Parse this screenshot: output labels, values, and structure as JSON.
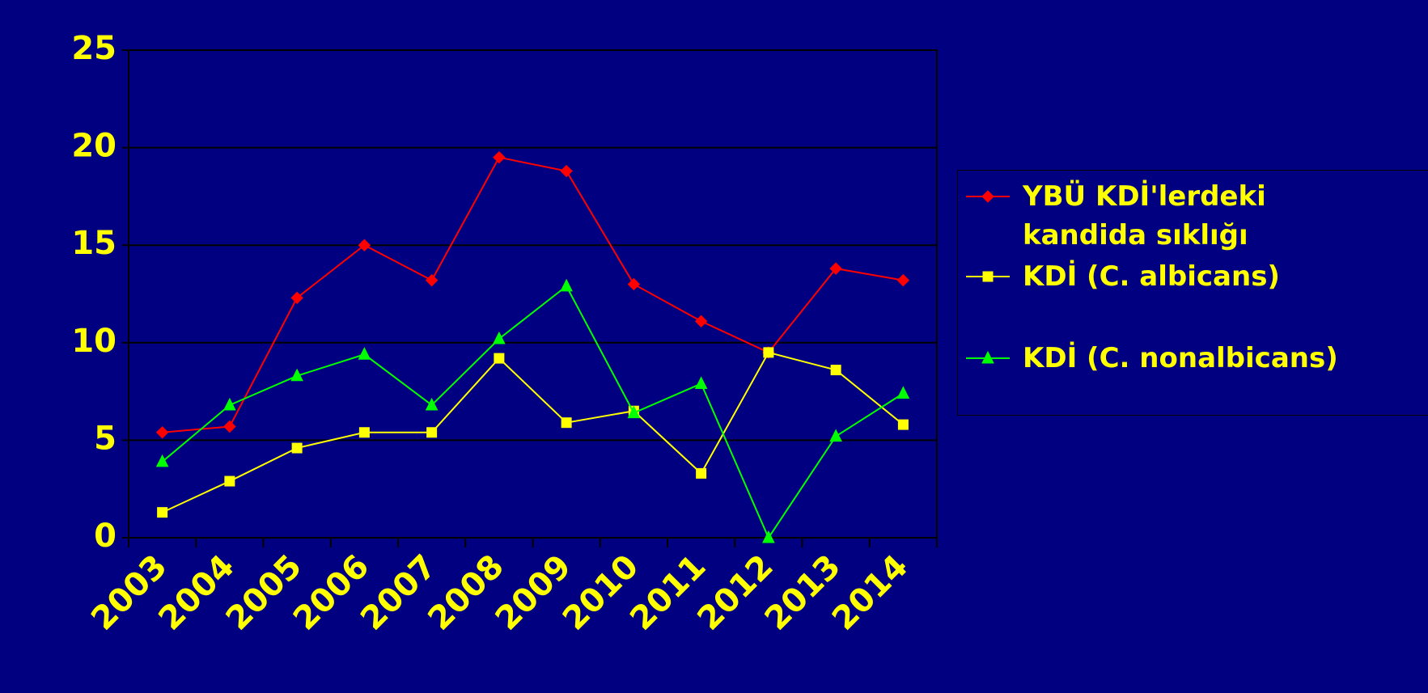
{
  "chart_data": {
    "type": "line",
    "categories": [
      "2003",
      "2004",
      "2005",
      "2006",
      "2007",
      "2008",
      "2009",
      "2010",
      "2011",
      "2012",
      "2013",
      "2014"
    ],
    "series": [
      {
        "name": "YBÜ KDİ'lerdeki kandida sıklığı",
        "color": "#ff0000",
        "marker": "diamond",
        "values": [
          5.4,
          5.7,
          12.3,
          15.0,
          13.2,
          19.5,
          18.8,
          13.0,
          11.1,
          9.5,
          13.8,
          13.2
        ]
      },
      {
        "name": "KDİ (C. albicans)",
        "color": "#ffff00",
        "marker": "square",
        "values": [
          1.3,
          2.9,
          4.6,
          5.4,
          5.4,
          9.2,
          5.9,
          6.5,
          3.3,
          9.5,
          8.6,
          5.8
        ]
      },
      {
        "name": "KDİ (C. nonalbicans)",
        "color": "#00ff00",
        "marker": "triangle",
        "values": [
          3.9,
          6.8,
          8.3,
          9.4,
          6.8,
          10.2,
          12.9,
          6.4,
          7.9,
          0,
          5.2,
          7.4
        ]
      }
    ],
    "ylim": [
      0,
      25
    ],
    "yticks": [
      0,
      5,
      10,
      15,
      20,
      25
    ],
    "grid": true
  }
}
